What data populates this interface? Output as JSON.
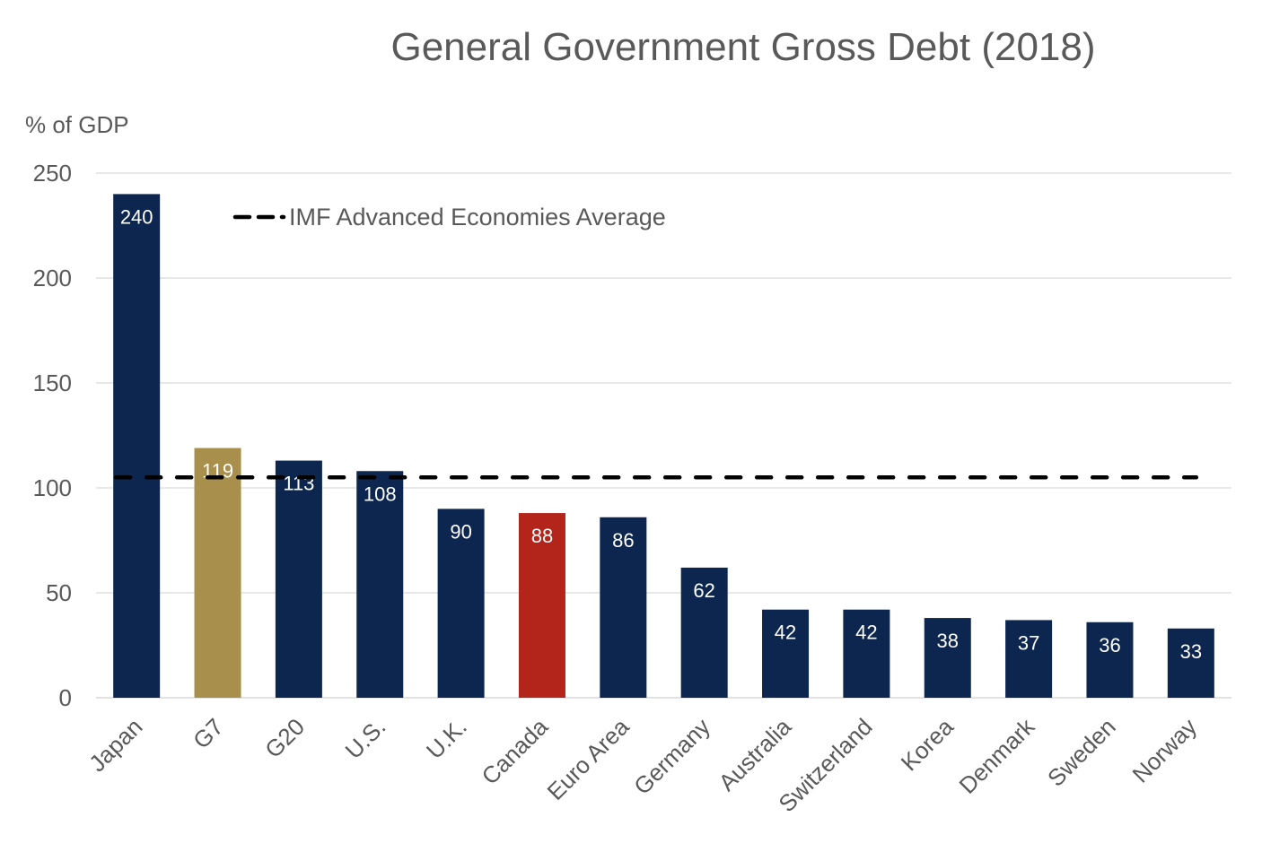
{
  "chart_data": {
    "type": "bar",
    "title": "General Government Gross Debt (2018)",
    "xlabel": "",
    "ylabel": "% of GDP",
    "ylim": [
      0,
      250
    ],
    "yticks": [
      0,
      50,
      100,
      150,
      200,
      250
    ],
    "grid": true,
    "categories": [
      "Japan",
      "G7",
      "G20",
      "U.S.",
      "U.K.",
      "Canada",
      "Euro Area",
      "Germany",
      "Australia",
      "Switzerland",
      "Korea",
      "Denmark",
      "Sweden",
      "Norway"
    ],
    "values": [
      240,
      119,
      113,
      108,
      90,
      88,
      86,
      62,
      42,
      42,
      38,
      37,
      36,
      33
    ],
    "data_labels": [
      "240",
      "119",
      "113",
      "108",
      "90",
      "88",
      "86",
      "62",
      "42",
      "42",
      "38",
      "37",
      "36",
      "33"
    ],
    "bar_colors": [
      "#0d2650",
      "#a88f4c",
      "#0d2650",
      "#0d2650",
      "#0d2650",
      "#b3241b",
      "#0d2650",
      "#0d2650",
      "#0d2650",
      "#0d2650",
      "#0d2650",
      "#0d2650",
      "#0d2650",
      "#0d2650"
    ],
    "reference_line": {
      "name": "IMF Advanced Economies Average",
      "value": 105,
      "style": "dashed",
      "color": "#000000"
    },
    "legend": {
      "position": "top-left",
      "entries": [
        "IMF Advanced Economies Average"
      ]
    }
  }
}
